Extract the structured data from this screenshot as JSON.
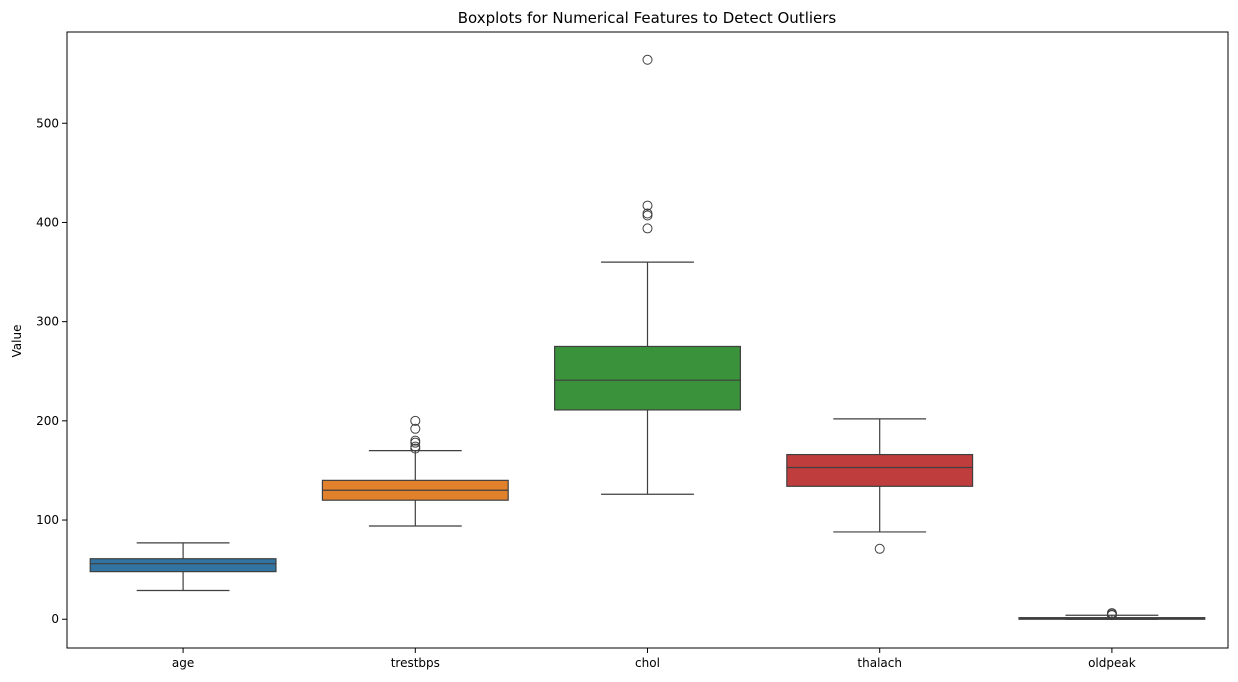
{
  "chart_data": {
    "type": "boxplot",
    "title": "Boxplots for Numerical Features to Detect Outliers",
    "xlabel": "",
    "ylabel": "Value",
    "ylim": [
      -29,
      592
    ],
    "yticks": [
      0,
      100,
      200,
      300,
      400,
      500
    ],
    "grid": false,
    "categories": [
      "age",
      "trestbps",
      "chol",
      "thalach",
      "oldpeak"
    ],
    "boxes": [
      {
        "category": "age",
        "color": "#3274a1",
        "whisker_low": 29,
        "q1": 48,
        "median": 56,
        "q3": 61,
        "whisker_high": 77,
        "outliers": []
      },
      {
        "category": "trestbps",
        "color": "#e1812c",
        "whisker_low": 94,
        "q1": 120,
        "median": 130,
        "q3": 140,
        "whisker_high": 170,
        "outliers": [
          172,
          174,
          178,
          180,
          192,
          200
        ]
      },
      {
        "category": "chol",
        "color": "#3a923a",
        "whisker_low": 126,
        "q1": 211,
        "median": 241,
        "q3": 275,
        "whisker_high": 360,
        "outliers": [
          394,
          407,
          409,
          417,
          564
        ]
      },
      {
        "category": "thalach",
        "color": "#c03d3e",
        "whisker_low": 88,
        "q1": 134,
        "median": 153,
        "q3": 166,
        "whisker_high": 202,
        "outliers": [
          71
        ]
      },
      {
        "category": "oldpeak",
        "color": "#3274a1",
        "whisker_low": 0,
        "q1": 0,
        "median": 0.8,
        "q3": 1.6,
        "whisker_high": 4.0,
        "outliers": [
          4.2,
          4.4,
          5.6,
          6.2
        ]
      }
    ]
  }
}
